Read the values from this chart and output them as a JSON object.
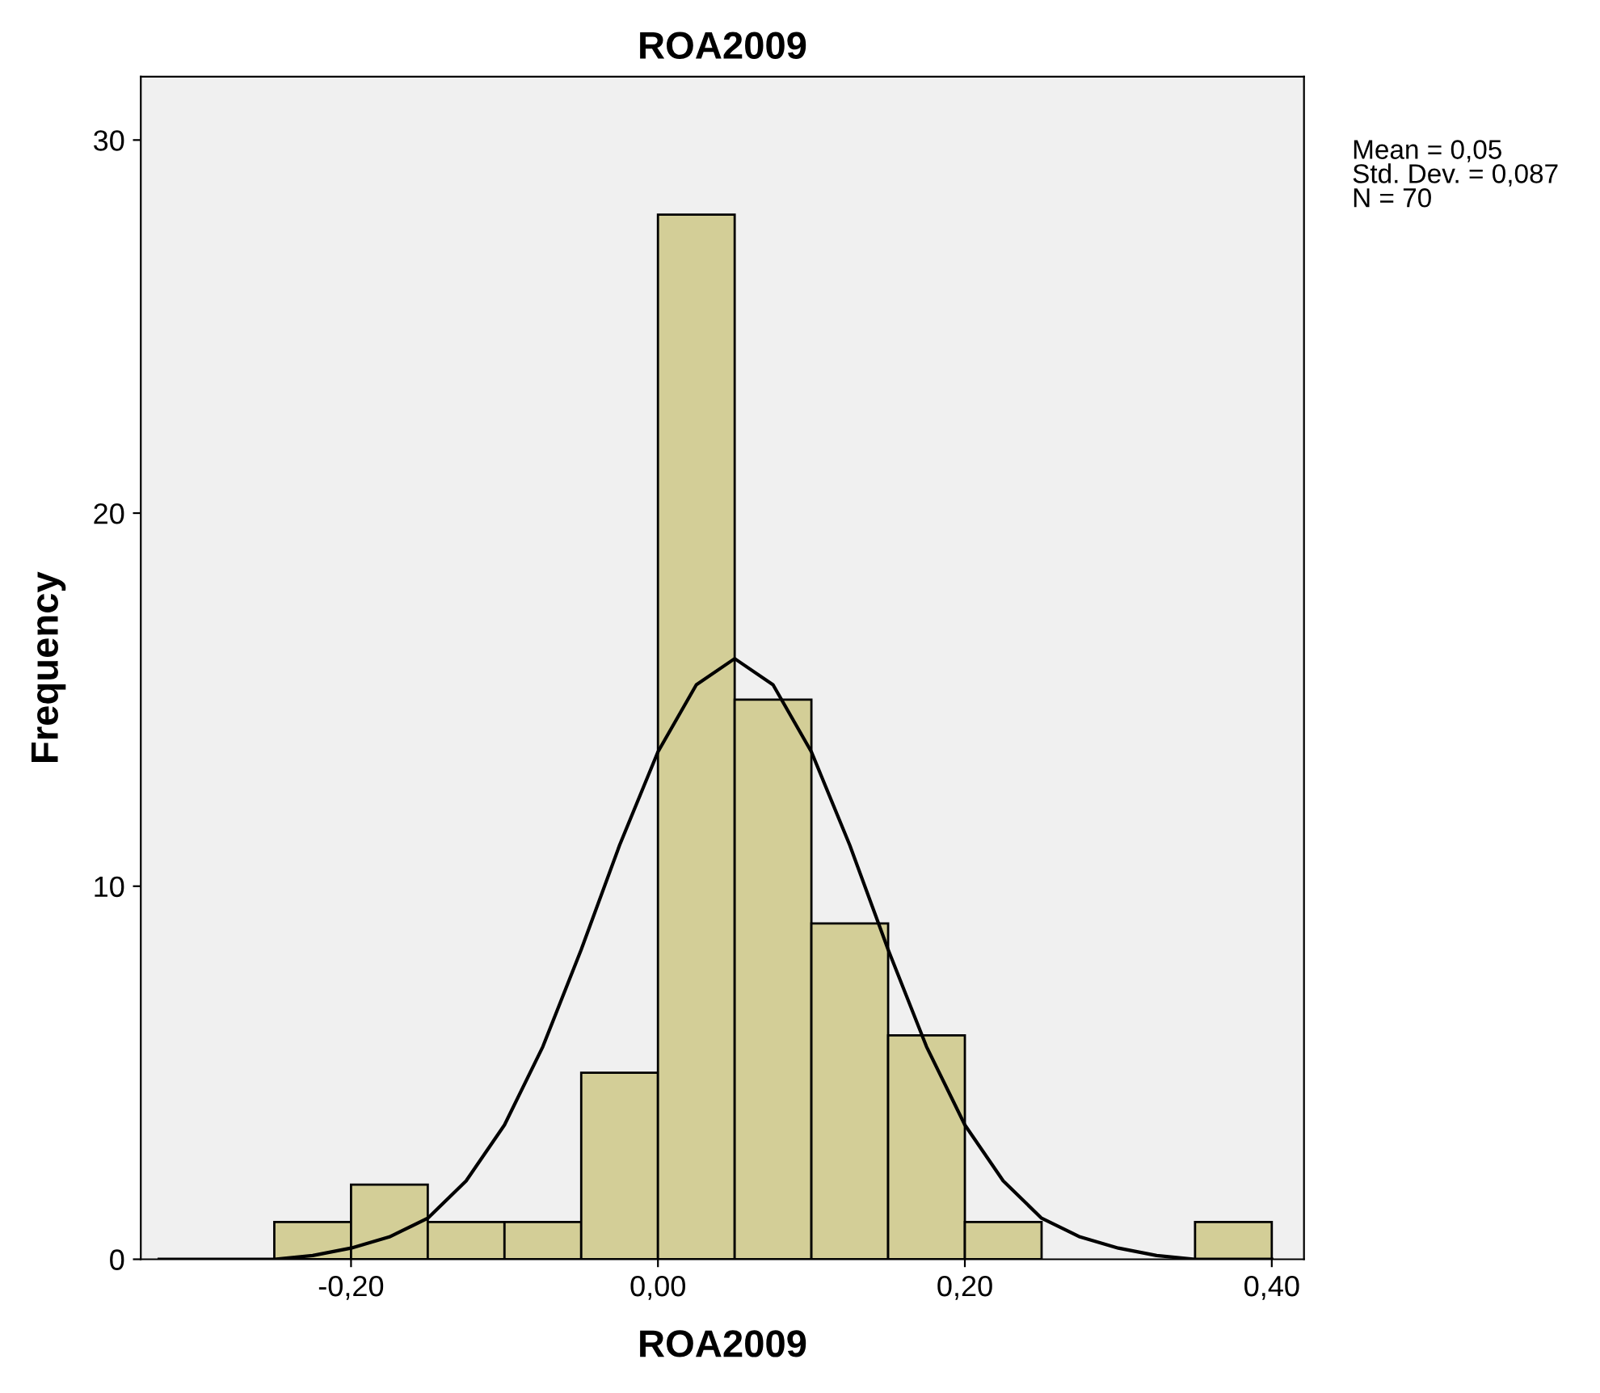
{
  "chart_data": {
    "type": "histogram",
    "title": "ROA2009",
    "xlabel": "ROA2009",
    "ylabel": "Frequency",
    "bins": [
      -0.25,
      -0.2,
      -0.15,
      -0.1,
      -0.05,
      0,
      0.05,
      0.1,
      0.15,
      0.2,
      0.25,
      0.3,
      0.35,
      0.4
    ],
    "values": [
      1,
      2,
      1,
      1,
      5,
      28,
      15,
      9,
      6,
      1,
      0,
      0,
      1
    ],
    "color": "#d3ce97",
    "series": [
      {
        "type": "line",
        "color": "#000000",
        "x": [
          -0.325,
          -0.3,
          -0.275,
          -0.25,
          -0.225,
          -0.2,
          -0.175,
          -0.15,
          -0.125,
          -0.1,
          -0.075,
          -0.05,
          -0.025,
          0,
          0.025,
          0.05,
          0.075,
          0.1,
          0.125,
          0.15,
          0.175,
          0.2,
          0.225,
          0.25,
          0.275,
          0.3,
          0.325,
          0.35,
          0.375,
          0.4
        ],
        "values": [
          0,
          0,
          0,
          0,
          0.1,
          0.3,
          0.6,
          1.1,
          2.1,
          3.6,
          5.7,
          8.3,
          11.1,
          13.6,
          15.4,
          16.1,
          15.4,
          13.6,
          11.1,
          8.3,
          5.7,
          3.6,
          2.1,
          1.1,
          0.6,
          0.3,
          0.1,
          0,
          0,
          0
        ]
      }
    ],
    "xlim": [
      -0.337,
      0.421
    ],
    "ylim": [
      0,
      31.7
    ],
    "xticks": [
      {
        "value": -0.2,
        "label": "-0,20"
      },
      {
        "value": 0,
        "label": "0,00"
      },
      {
        "value": 0.2,
        "label": "0,20"
      },
      {
        "value": 0.4,
        "label": "0,40"
      }
    ],
    "yticks": [
      0,
      10,
      20,
      30
    ],
    "grid": false,
    "legend": false,
    "annotations": [
      "Mean = 0,05",
      "Std. Dev. = 0,087",
      "N = 70"
    ]
  }
}
